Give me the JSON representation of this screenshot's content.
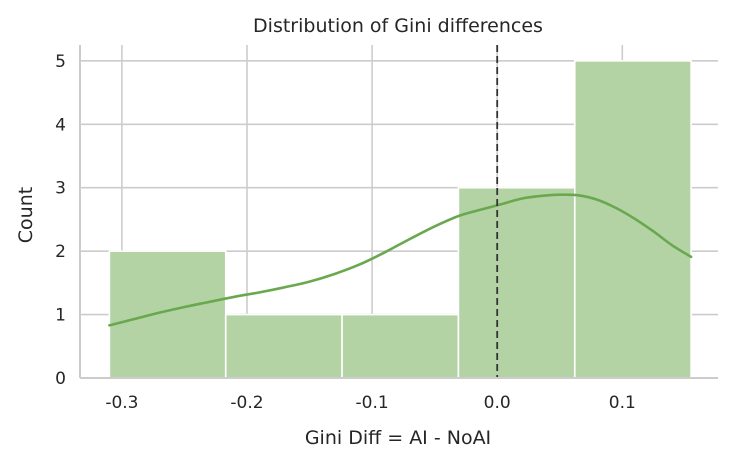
{
  "chart_data": {
    "type": "bar",
    "title": "Distribution of Gini differences",
    "xlabel": "Gini Diff = AI - NoAI",
    "ylabel": "Count",
    "xlim": [
      -0.3335,
      0.1765
    ],
    "ylim": [
      0,
      5.25
    ],
    "grid": true,
    "x_ticks": [
      -0.3,
      -0.2,
      -0.1,
      0.0,
      0.1
    ],
    "x_tick_labels": [
      "-0.3",
      "-0.2",
      "-0.1",
      "0.0",
      "0.1"
    ],
    "y_ticks": [
      0,
      1,
      2,
      3,
      4,
      5
    ],
    "y_tick_labels": [
      "0",
      "1",
      "2",
      "3",
      "4",
      "5"
    ],
    "bins": [
      {
        "x0": -0.31,
        "x1": -0.217,
        "count": 2
      },
      {
        "x0": -0.217,
        "x1": -0.124,
        "count": 1
      },
      {
        "x0": -0.124,
        "x1": -0.031,
        "count": 1
      },
      {
        "x0": -0.031,
        "x1": 0.062,
        "count": 3
      },
      {
        "x0": 0.062,
        "x1": 0.155,
        "count": 5
      }
    ],
    "kde": {
      "x": [
        -0.31,
        -0.29,
        -0.27,
        -0.25,
        -0.23,
        -0.21,
        -0.19,
        -0.17,
        -0.15,
        -0.13,
        -0.11,
        -0.09,
        -0.07,
        -0.05,
        -0.03,
        -0.01,
        0.005,
        0.02,
        0.035,
        0.05,
        0.065,
        0.08,
        0.095,
        0.11,
        0.125,
        0.14,
        0.155
      ],
      "y": [
        0.83,
        0.93,
        1.03,
        1.12,
        1.2,
        1.28,
        1.35,
        1.43,
        1.52,
        1.64,
        1.79,
        1.98,
        2.19,
        2.39,
        2.56,
        2.67,
        2.75,
        2.83,
        2.87,
        2.89,
        2.88,
        2.81,
        2.68,
        2.51,
        2.31,
        2.09,
        1.91
      ]
    },
    "reference_line": {
      "x": 0.0,
      "style": "dashed"
    },
    "colors": {
      "bar_fill": "#b3d3a5",
      "bar_edge": "#ffffff",
      "kde_line": "#6aa84f",
      "grid": "#cccccc",
      "axis": "#cccccc",
      "reference_line": "#333333",
      "text": "#262626"
    }
  }
}
